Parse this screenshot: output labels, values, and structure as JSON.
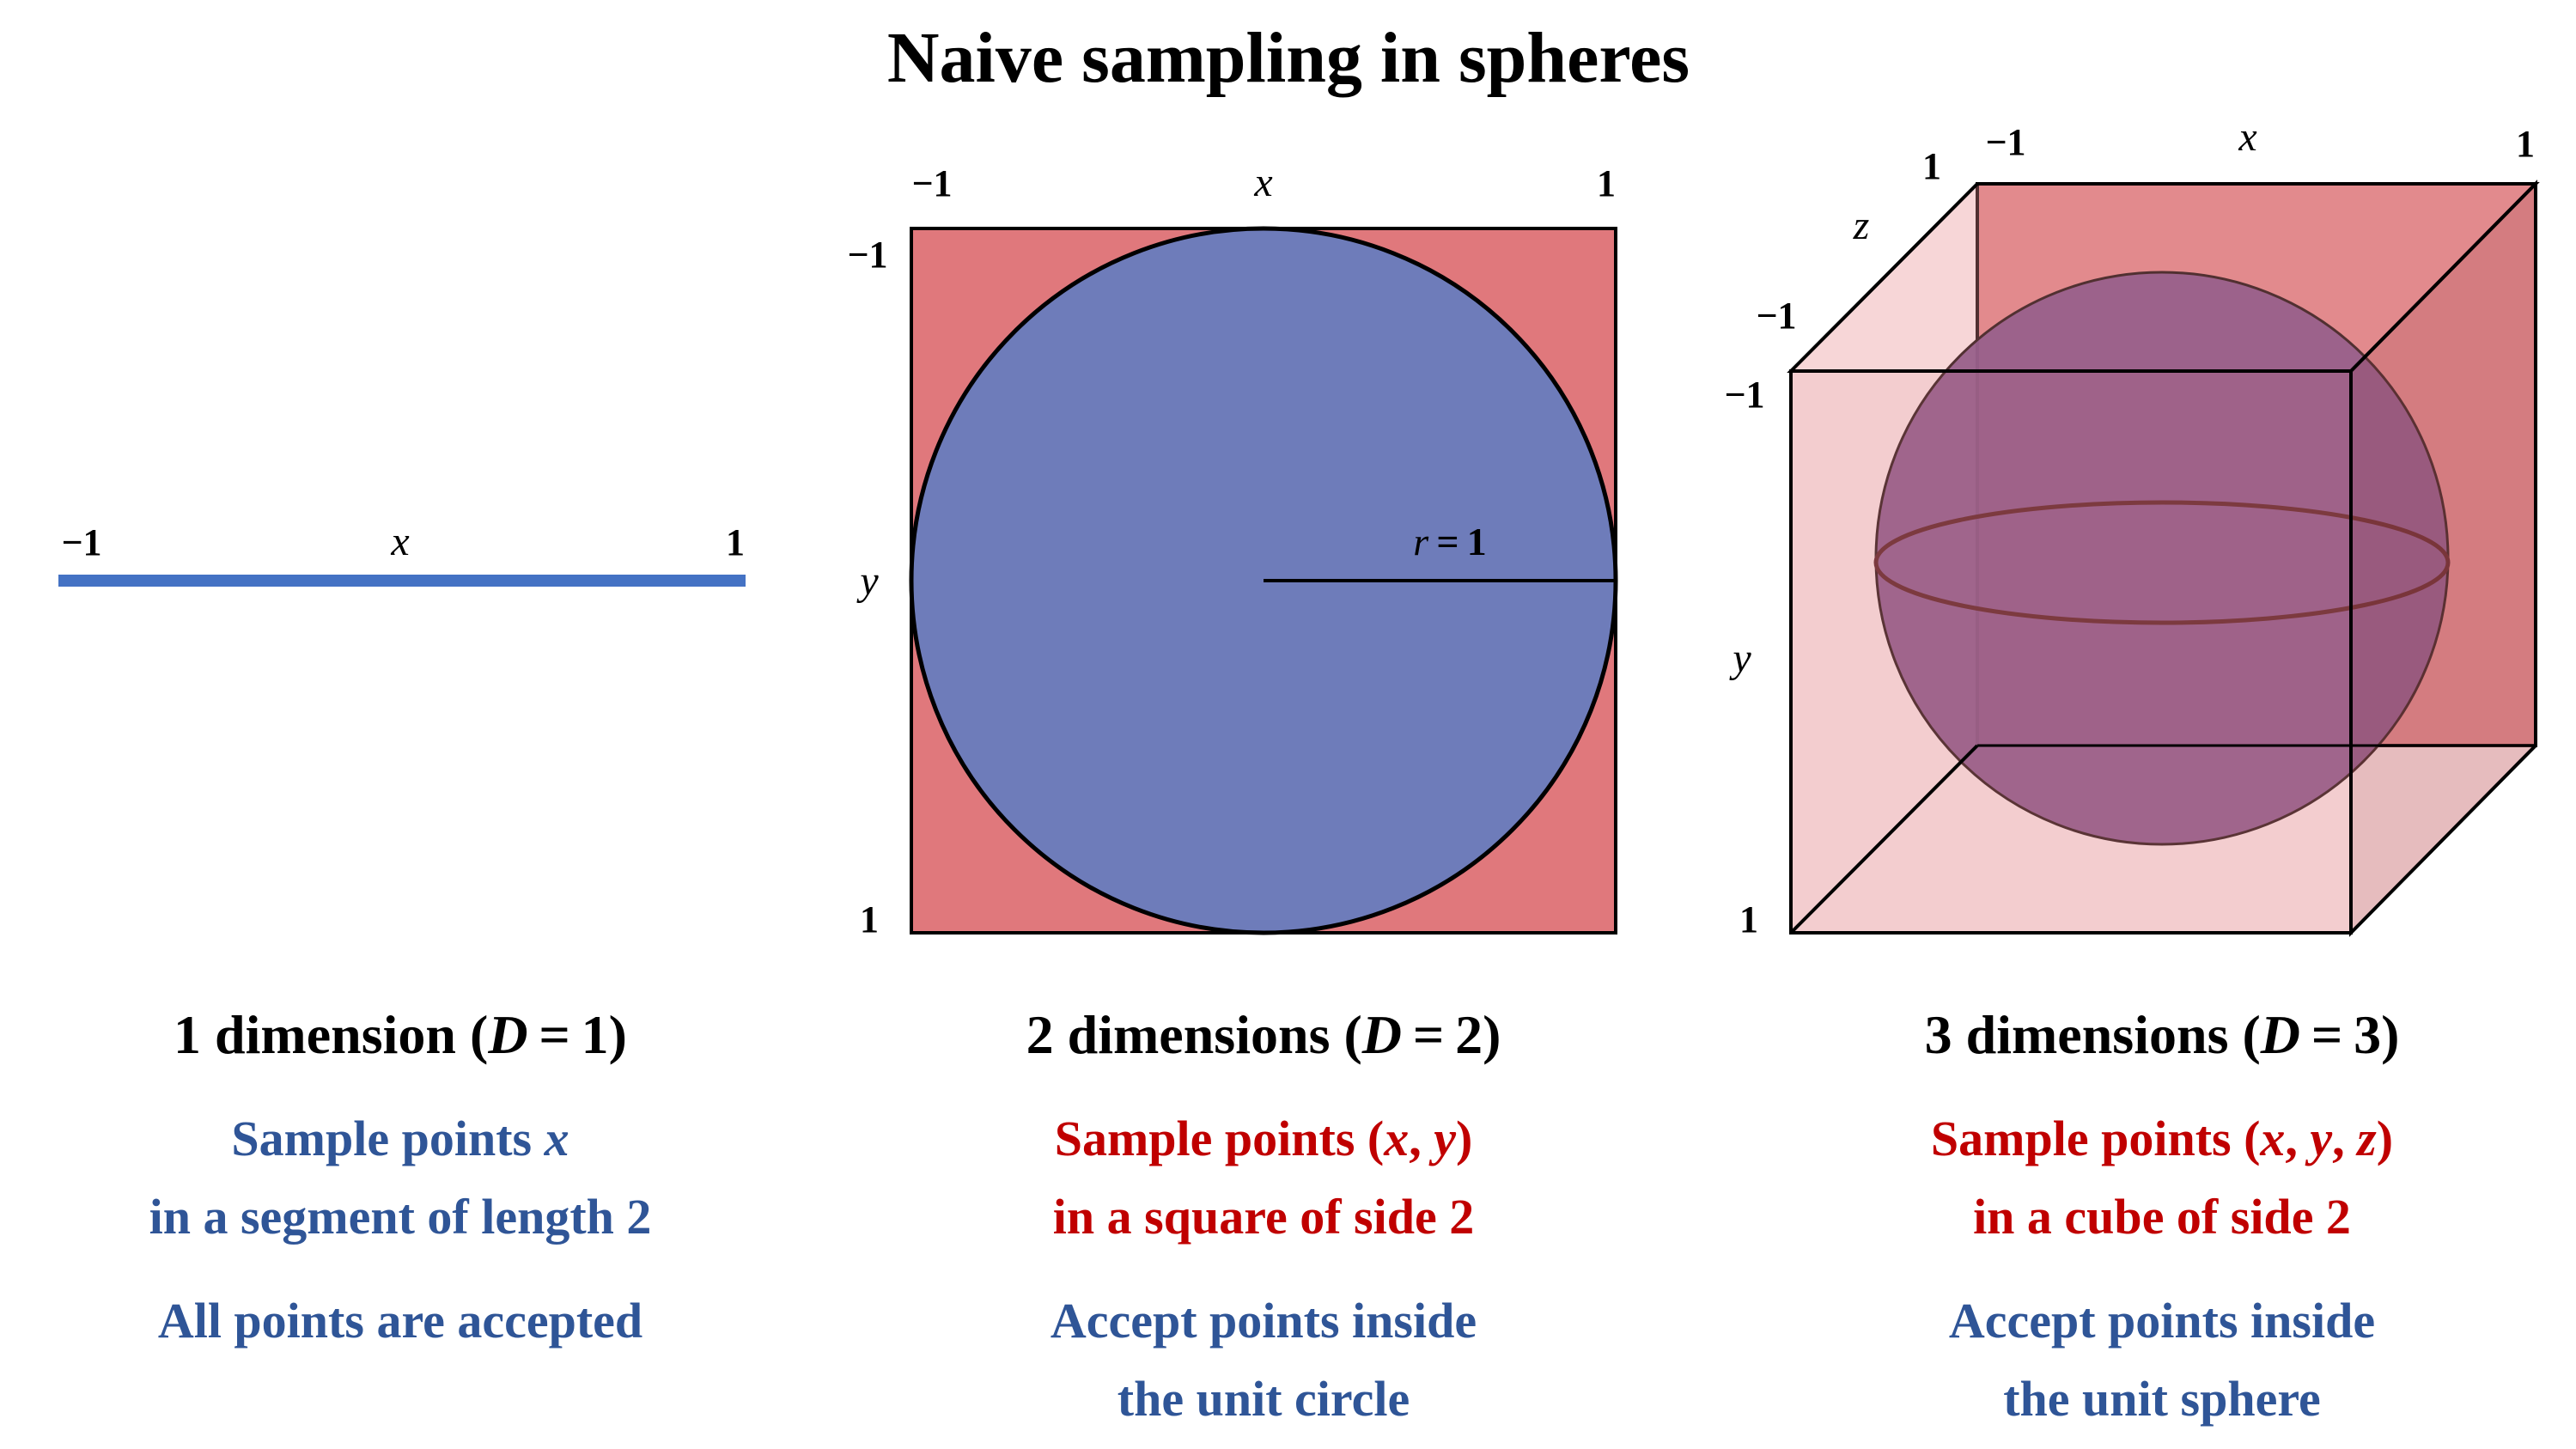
{
  "title": "Naive sampling in spheres",
  "colors": {
    "blue_segment": "#4472c4",
    "circle_fill": "#6e7cba",
    "square_fill": "#e0787c",
    "cube_fill": "#d9767a",
    "sphere_fill": "#6e4a8a",
    "text_blue": "#2f5597",
    "text_red": "#c00000"
  },
  "panel_1d": {
    "tick_min": "−1",
    "tick_max": "1",
    "axis_label": "x",
    "heading": {
      "prefix": "1 dimension (",
      "var": "D",
      "suffix": " = 1)"
    },
    "caption_line1": {
      "text": "Sample points ",
      "var": "x"
    },
    "caption_line2": "in a segment of  length 2",
    "caption_line3": "All points are accepted"
  },
  "panel_2d": {
    "x_tick_min": "−1",
    "x_tick_max": "1",
    "x_label": "x",
    "y_tick_min": "−1",
    "y_tick_max": "1",
    "y_label": "y",
    "radius_label": {
      "var": "r",
      "rest": " = 1"
    },
    "heading": {
      "prefix": "2 dimensions (",
      "var": "D",
      "suffix": " = 2)"
    },
    "caption_line1": {
      "text": "Sample points (",
      "var1": "x",
      "sep": ", ",
      "var2": "y",
      "end": ")"
    },
    "caption_line2": "in a square of  side 2",
    "caption_line3": "Accept points inside",
    "caption_line4": "the unit circle"
  },
  "panel_3d": {
    "x_tick_min": "−1",
    "x_tick_max": "1",
    "x_label": "x",
    "z_tick_min": "−1",
    "z_tick_max": "1",
    "z_label": "z",
    "y_tick_min": "−1",
    "y_tick_max": "1",
    "y_label": "y",
    "heading": {
      "prefix": "3 dimensions (",
      "var": "D",
      "suffix": " = 3)"
    },
    "caption_line1": {
      "text": "Sample points (",
      "var1": "x",
      "sep1": ", ",
      "var2": "y",
      "sep2": ", ",
      "var3": "z",
      "end": ")"
    },
    "caption_line2": "in a cube of  side 2",
    "caption_line3": "Accept points inside",
    "caption_line4": "the unit sphere"
  }
}
